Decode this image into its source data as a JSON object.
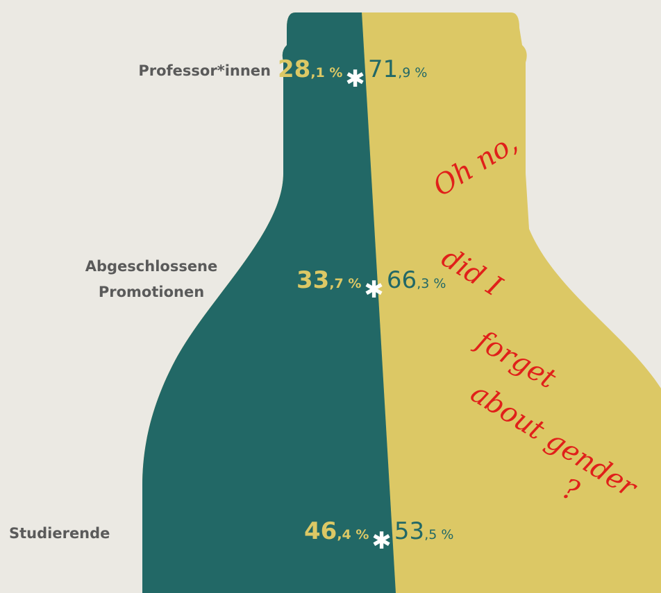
{
  "rows": [
    {
      "label": [
        "Professor*innen"
      ],
      "left": {
        "big": "28",
        "small": ",1 %"
      },
      "right": {
        "big": "71",
        "small": ",9 %"
      }
    },
    {
      "label": [
        "Abgeschlossene",
        "Promotionen"
      ],
      "left": {
        "big": "33",
        "small": ",7 %"
      },
      "right": {
        "big": "66",
        "small": ",3 %"
      }
    },
    {
      "label": [
        "Studierende"
      ],
      "left": {
        "big": "46",
        "small": ",4 %"
      },
      "right": {
        "big": "53",
        "small": ",5 %"
      }
    }
  ],
  "annotation": [
    "Oh no,",
    "did I",
    "forget",
    "about gender",
    "?"
  ]
}
